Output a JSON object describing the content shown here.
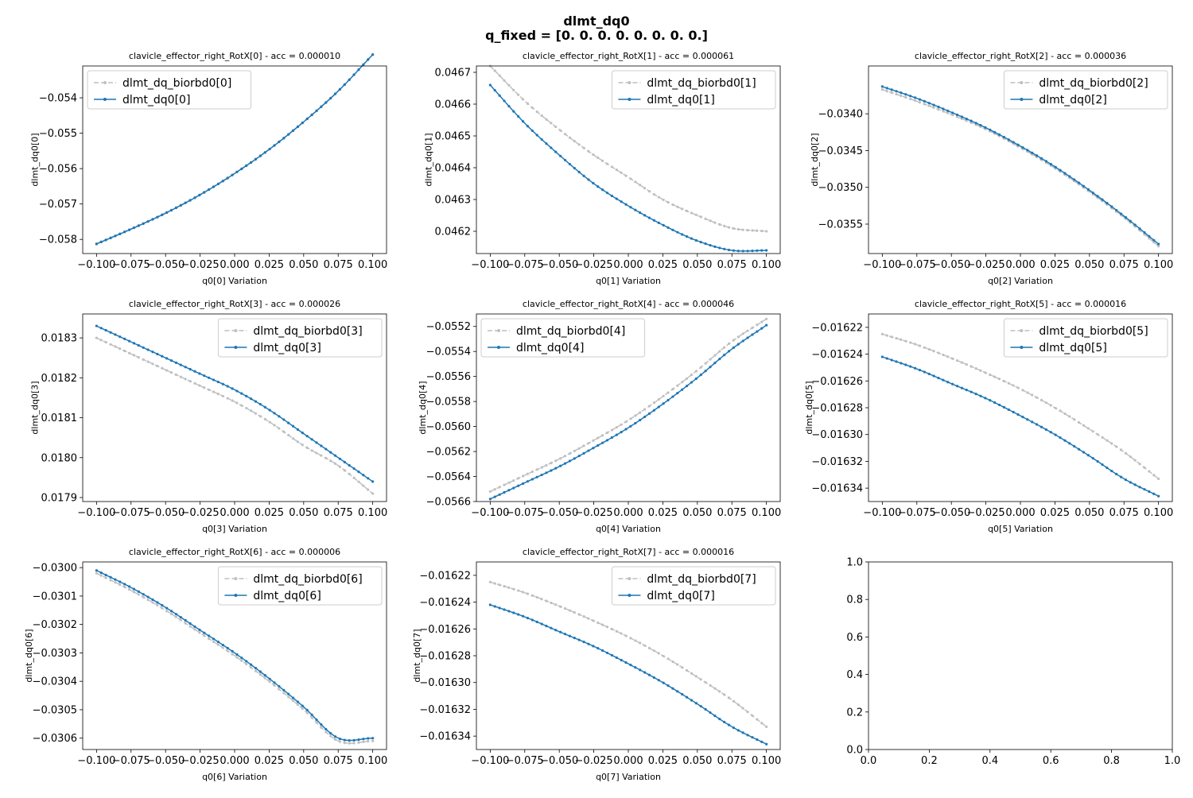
{
  "figure": {
    "title": "dlmt_dq0",
    "subtitle": "q_fixed = [0. 0. 0. 0. 0. 0. 0. 0.]"
  },
  "colors": {
    "reference": "#bfbfbf",
    "model": "#1f77b4"
  },
  "chart_data": [
    {
      "type": "line",
      "title": "clavicle_effector_right_RotX[0] - acc = 0.000010",
      "xlabel": "q0[0] Variation",
      "ylabel": "dlmt_dq0[0]",
      "xlim": [
        -0.11,
        0.11
      ],
      "ylim": [
        -0.0584,
        -0.0531
      ],
      "x_ticks": [
        -0.1,
        -0.075,
        -0.05,
        -0.025,
        0.0,
        0.025,
        0.05,
        0.075,
        0.1
      ],
      "x_tick_labels": [
        "−0.100",
        "−0.075",
        "−0.050",
        "−0.025",
        "0.000",
        "0.025",
        "0.050",
        "0.075",
        "0.100"
      ],
      "y_ticks": [
        -0.058,
        -0.057,
        -0.056,
        -0.055,
        -0.054
      ],
      "y_tick_labels": [
        "−0.058",
        "−0.057",
        "−0.056",
        "−0.055",
        "−0.054"
      ],
      "legend": "upper-left",
      "series": [
        {
          "name": "dlmt_dq_biorbd0[0]",
          "style": "dashed",
          "x": [
            -0.1,
            -0.075,
            -0.05,
            -0.025,
            0.0,
            0.025,
            0.05,
            0.075,
            0.1
          ],
          "values": [
            -0.05812,
            -0.0577,
            -0.05725,
            -0.05673,
            -0.05613,
            -0.05545,
            -0.05467,
            -0.0538,
            -0.05277
          ]
        },
        {
          "name": "dlmt_dq0[0]",
          "style": "solid",
          "x": [
            -0.1,
            -0.075,
            -0.05,
            -0.025,
            0.0,
            0.025,
            0.05,
            0.075,
            0.1
          ],
          "values": [
            -0.05813,
            -0.05771,
            -0.05726,
            -0.05674,
            -0.05614,
            -0.05546,
            -0.05468,
            -0.05381,
            -0.05278
          ]
        }
      ]
    },
    {
      "type": "line",
      "title": "clavicle_effector_right_RotX[1] - acc = 0.000061",
      "xlabel": "q0[1] Variation",
      "ylabel": "dlmt_dq0[1]",
      "xlim": [
        -0.11,
        0.11
      ],
      "ylim": [
        0.04613,
        0.04672
      ],
      "x_ticks": [
        -0.1,
        -0.075,
        -0.05,
        -0.025,
        0.0,
        0.025,
        0.05,
        0.075,
        0.1
      ],
      "x_tick_labels": [
        "−0.100",
        "−0.075",
        "−0.050",
        "−0.025",
        "0.000",
        "0.025",
        "0.050",
        "0.075",
        "0.100"
      ],
      "y_ticks": [
        0.0462,
        0.0463,
        0.0464,
        0.0465,
        0.0466,
        0.0467
      ],
      "y_tick_labels": [
        "0.0462",
        "0.0463",
        "0.0464",
        "0.0465",
        "0.0466",
        "0.0467"
      ],
      "legend": "upper-right",
      "series": [
        {
          "name": "dlmt_dq_biorbd0[1]",
          "style": "dashed",
          "x": [
            -0.1,
            -0.075,
            -0.05,
            -0.025,
            0.0,
            0.025,
            0.05,
            0.075,
            0.1
          ],
          "values": [
            0.04672,
            0.04661,
            0.04652,
            0.04644,
            0.04637,
            0.0463,
            0.04625,
            0.04621,
            0.0462
          ]
        },
        {
          "name": "dlmt_dq0[1]",
          "style": "solid",
          "x": [
            -0.1,
            -0.075,
            -0.05,
            -0.025,
            0.0,
            0.025,
            0.05,
            0.075,
            0.1
          ],
          "values": [
            0.04666,
            0.04654,
            0.04644,
            0.04635,
            0.04628,
            0.04622,
            0.04617,
            0.04614,
            0.04614
          ]
        }
      ]
    },
    {
      "type": "line",
      "title": "clavicle_effector_right_RotX[2] - acc = 0.000036",
      "xlabel": "q0[2] Variation",
      "ylabel": "dlmt_dq0[2]",
      "xlim": [
        -0.11,
        0.11
      ],
      "ylim": [
        -0.0359,
        -0.03335
      ],
      "x_ticks": [
        -0.1,
        -0.075,
        -0.05,
        -0.025,
        0.0,
        0.025,
        0.05,
        0.075,
        0.1
      ],
      "x_tick_labels": [
        "−0.100",
        "−0.075",
        "−0.050",
        "−0.025",
        "0.000",
        "0.025",
        "0.050",
        "0.075",
        "0.100"
      ],
      "y_ticks": [
        -0.0355,
        -0.035,
        -0.0345,
        -0.034
      ],
      "y_tick_labels": [
        "−0.0355",
        "−0.0350",
        "−0.0345",
        "−0.0340"
      ],
      "legend": "upper-right",
      "series": [
        {
          "name": "dlmt_dq_biorbd0[2]",
          "style": "dashed",
          "x": [
            -0.1,
            -0.075,
            -0.05,
            -0.025,
            0.0,
            0.025,
            0.05,
            0.075,
            0.1
          ],
          "values": [
            -0.03367,
            -0.03383,
            -0.03401,
            -0.03421,
            -0.03446,
            -0.03474,
            -0.03506,
            -0.03541,
            -0.0358
          ]
        },
        {
          "name": "dlmt_dq0[2]",
          "style": "solid",
          "x": [
            -0.1,
            -0.075,
            -0.05,
            -0.025,
            0.0,
            0.025,
            0.05,
            0.075,
            0.1
          ],
          "values": [
            -0.03363,
            -0.03379,
            -0.03398,
            -0.03419,
            -0.03444,
            -0.03472,
            -0.03504,
            -0.03539,
            -0.03577
          ]
        }
      ]
    },
    {
      "type": "line",
      "title": "clavicle_effector_right_RotX[3] - acc = 0.000026",
      "xlabel": "q0[3] Variation",
      "ylabel": "dlmt_dq0[3]",
      "xlim": [
        -0.11,
        0.11
      ],
      "ylim": [
        0.01789,
        0.01836
      ],
      "x_ticks": [
        -0.1,
        -0.075,
        -0.05,
        -0.025,
        0.0,
        0.025,
        0.05,
        0.075,
        0.1
      ],
      "x_tick_labels": [
        "−0.100",
        "−0.075",
        "−0.050",
        "−0.025",
        "0.000",
        "0.025",
        "0.050",
        "0.075",
        "0.100"
      ],
      "y_ticks": [
        0.0179,
        0.018,
        0.0181,
        0.0182,
        0.0183
      ],
      "y_tick_labels": [
        "0.0179",
        "0.0180",
        "0.0181",
        "0.0182",
        "0.0183"
      ],
      "legend": "upper-right",
      "series": [
        {
          "name": "dlmt_dq_biorbd0[3]",
          "style": "dashed",
          "x": [
            -0.1,
            -0.075,
            -0.05,
            -0.025,
            0.0,
            0.025,
            0.05,
            0.075,
            0.1
          ],
          "values": [
            0.0183,
            0.01826,
            0.01822,
            0.01818,
            0.01814,
            0.01809,
            0.01803,
            0.01798,
            0.01791
          ]
        },
        {
          "name": "dlmt_dq0[3]",
          "style": "solid",
          "x": [
            -0.1,
            -0.075,
            -0.05,
            -0.025,
            0.0,
            0.025,
            0.05,
            0.075,
            0.1
          ],
          "values": [
            0.01833,
            0.01829,
            0.01825,
            0.01821,
            0.01817,
            0.01812,
            0.01806,
            0.018,
            0.01794
          ]
        }
      ]
    },
    {
      "type": "line",
      "title": "clavicle_effector_right_RotX[4] - acc = 0.000046",
      "xlabel": "q0[4] Variation",
      "ylabel": "dlmt_dq0[4]",
      "xlim": [
        -0.11,
        0.11
      ],
      "ylim": [
        -0.0566,
        -0.0551
      ],
      "x_ticks": [
        -0.1,
        -0.075,
        -0.05,
        -0.025,
        0.0,
        0.025,
        0.05,
        0.075,
        0.1
      ],
      "x_tick_labels": [
        "−0.100",
        "−0.075",
        "−0.050",
        "−0.025",
        "0.000",
        "0.025",
        "0.050",
        "0.075",
        "0.100"
      ],
      "y_ticks": [
        -0.0566,
        -0.0564,
        -0.0562,
        -0.056,
        -0.0558,
        -0.0556,
        -0.0554,
        -0.0552
      ],
      "y_tick_labels": [
        "−0.0566",
        "−0.0564",
        "−0.0562",
        "−0.0560",
        "−0.0558",
        "−0.0556",
        "−0.0554",
        "−0.0552"
      ],
      "legend": "upper-left",
      "series": [
        {
          "name": "dlmt_dq_biorbd0[4]",
          "style": "dashed",
          "x": [
            -0.1,
            -0.075,
            -0.05,
            -0.025,
            0.0,
            0.025,
            0.05,
            0.075,
            0.1
          ],
          "values": [
            -0.05652,
            -0.05639,
            -0.05626,
            -0.05611,
            -0.05595,
            -0.05576,
            -0.05555,
            -0.05532,
            -0.05514
          ]
        },
        {
          "name": "dlmt_dq0[4]",
          "style": "solid",
          "x": [
            -0.1,
            -0.075,
            -0.05,
            -0.025,
            0.0,
            0.025,
            0.05,
            0.075,
            0.1
          ],
          "values": [
            -0.05658,
            -0.05645,
            -0.05632,
            -0.05617,
            -0.05601,
            -0.05582,
            -0.05561,
            -0.05538,
            -0.05519
          ]
        }
      ]
    },
    {
      "type": "line",
      "title": "clavicle_effector_right_RotX[5] - acc = 0.000016",
      "xlabel": "q0[5] Variation",
      "ylabel": "dlmt_dq0[5]",
      "xlim": [
        -0.11,
        0.11
      ],
      "ylim": [
        -0.01635,
        -0.01621
      ],
      "x_ticks": [
        -0.1,
        -0.075,
        -0.05,
        -0.025,
        0.0,
        0.025,
        0.05,
        0.075,
        0.1
      ],
      "x_tick_labels": [
        "−0.100",
        "−0.075",
        "−0.050",
        "−0.025",
        "0.000",
        "0.025",
        "0.050",
        "0.075",
        "0.100"
      ],
      "y_ticks": [
        -0.01634,
        -0.01632,
        -0.0163,
        -0.01628,
        -0.01626,
        -0.01624,
        -0.01622
      ],
      "y_tick_labels": [
        "−0.01634",
        "−0.01632",
        "−0.01630",
        "−0.01628",
        "−0.01626",
        "−0.01624",
        "−0.01622"
      ],
      "legend": "upper-right",
      "series": [
        {
          "name": "dlmt_dq_biorbd0[5]",
          "style": "dashed",
          "x": [
            -0.1,
            -0.075,
            -0.05,
            -0.025,
            0.0,
            0.025,
            0.05,
            0.075,
            0.1
          ],
          "values": [
            -0.016225,
            -0.016233,
            -0.016243,
            -0.016254,
            -0.016266,
            -0.01628,
            -0.016296,
            -0.016313,
            -0.016333
          ]
        },
        {
          "name": "dlmt_dq0[5]",
          "style": "solid",
          "x": [
            -0.1,
            -0.075,
            -0.05,
            -0.025,
            0.0,
            0.025,
            0.05,
            0.075,
            0.1
          ],
          "values": [
            -0.016242,
            -0.016251,
            -0.016262,
            -0.016273,
            -0.016286,
            -0.0163,
            -0.016316,
            -0.016333,
            -0.016346
          ]
        }
      ]
    },
    {
      "type": "line",
      "title": "clavicle_effector_right_RotX[6] - acc = 0.000006",
      "xlabel": "q0[6] Variation",
      "ylabel": "dlmt_dq0[6]",
      "xlim": [
        -0.11,
        0.11
      ],
      "ylim": [
        -0.03064,
        -0.02998
      ],
      "x_ticks": [
        -0.1,
        -0.075,
        -0.05,
        -0.025,
        0.0,
        0.025,
        0.05,
        0.075,
        0.1
      ],
      "x_tick_labels": [
        "−0.100",
        "−0.075",
        "−0.050",
        "−0.025",
        "0.000",
        "0.025",
        "0.050",
        "0.075",
        "0.100"
      ],
      "y_ticks": [
        -0.0306,
        -0.0305,
        -0.0304,
        -0.0303,
        -0.0302,
        -0.0301,
        -0.03
      ],
      "y_tick_labels": [
        "−0.0306",
        "−0.0305",
        "−0.0304",
        "−0.0303",
        "−0.0302",
        "−0.0301",
        "−0.0300"
      ],
      "legend": "upper-right",
      "series": [
        {
          "name": "dlmt_dq_biorbd0[6]",
          "style": "dashed",
          "x": [
            -0.1,
            -0.075,
            -0.05,
            -0.025,
            0.0,
            0.025,
            0.05,
            0.075,
            0.1
          ],
          "values": [
            -0.03002,
            -0.03008,
            -0.03015,
            -0.03023,
            -0.03031,
            -0.0304,
            -0.0305,
            -0.03061,
            -0.03061
          ]
        },
        {
          "name": "dlmt_dq0[6]",
          "style": "solid",
          "x": [
            -0.1,
            -0.075,
            -0.05,
            -0.025,
            0.0,
            0.025,
            0.05,
            0.075,
            0.1
          ],
          "values": [
            -0.03001,
            -0.03007,
            -0.03014,
            -0.03022,
            -0.0303,
            -0.03039,
            -0.03049,
            -0.0306,
            -0.0306
          ]
        }
      ]
    },
    {
      "type": "line",
      "title": "clavicle_effector_right_RotX[7] - acc = 0.000016",
      "xlabel": "q0[7] Variation",
      "ylabel": "dlmt_dq0[7]",
      "xlim": [
        -0.11,
        0.11
      ],
      "ylim": [
        -0.01635,
        -0.01621
      ],
      "x_ticks": [
        -0.1,
        -0.075,
        -0.05,
        -0.025,
        0.0,
        0.025,
        0.05,
        0.075,
        0.1
      ],
      "x_tick_labels": [
        "−0.100",
        "−0.075",
        "−0.050",
        "−0.025",
        "0.000",
        "0.025",
        "0.050",
        "0.075",
        "0.100"
      ],
      "y_ticks": [
        -0.01634,
        -0.01632,
        -0.0163,
        -0.01628,
        -0.01626,
        -0.01624,
        -0.01622
      ],
      "y_tick_labels": [
        "−0.01634",
        "−0.01632",
        "−0.01630",
        "−0.01628",
        "−0.01626",
        "−0.01624",
        "−0.01622"
      ],
      "legend": "upper-right",
      "series": [
        {
          "name": "dlmt_dq_biorbd0[7]",
          "style": "dashed",
          "x": [
            -0.1,
            -0.075,
            -0.05,
            -0.025,
            0.0,
            0.025,
            0.05,
            0.075,
            0.1
          ],
          "values": [
            -0.016225,
            -0.016233,
            -0.016243,
            -0.016254,
            -0.016266,
            -0.01628,
            -0.016296,
            -0.016313,
            -0.016333
          ]
        },
        {
          "name": "dlmt_dq0[7]",
          "style": "solid",
          "x": [
            -0.1,
            -0.075,
            -0.05,
            -0.025,
            0.0,
            0.025,
            0.05,
            0.075,
            0.1
          ],
          "values": [
            -0.016242,
            -0.016251,
            -0.016262,
            -0.016273,
            -0.016286,
            -0.0163,
            -0.016316,
            -0.016333,
            -0.016346
          ]
        }
      ]
    },
    {
      "type": "line",
      "title": "",
      "xlabel": "",
      "ylabel": "",
      "xlim": [
        0,
        1
      ],
      "ylim": [
        0,
        1
      ],
      "x_ticks": [
        0,
        0.2,
        0.4,
        0.6,
        0.8,
        1
      ],
      "x_tick_labels": [
        "0.0",
        "0.2",
        "0.4",
        "0.6",
        "0.8",
        "1.0"
      ],
      "y_ticks": [
        0,
        0.2,
        0.4,
        0.6,
        0.8,
        1
      ],
      "y_tick_labels": [
        "0.0",
        "0.2",
        "0.4",
        "0.6",
        "0.8",
        "1.0"
      ],
      "legend": "",
      "series": []
    }
  ]
}
